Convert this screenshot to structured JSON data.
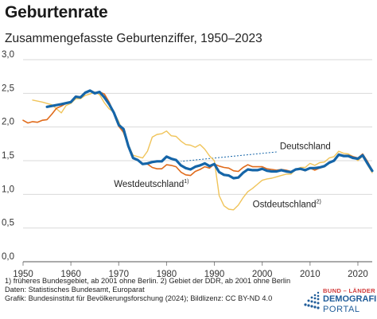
{
  "header": {
    "title": "Geburtenrate",
    "subtitle": "Zusammengefasste Geburtenziffer, 1950–2023"
  },
  "colors": {
    "deutschland": "#1565a8",
    "westdeutschland": "#e06b1b",
    "ostdeutschland": "#f0c45a",
    "grid": "#d9d9d9",
    "connector": "#1565a8"
  },
  "chart_data": {
    "type": "line",
    "title": "Geburtenrate",
    "subtitle": "Zusammengefasste Geburtenziffer, 1950–2023",
    "xlim": [
      1950,
      2023
    ],
    "ylim": [
      0,
      3.0
    ],
    "x_ticks": [
      "1950",
      "1960",
      "1970",
      "1980",
      "1990",
      "2000",
      "2010",
      "2020"
    ],
    "y_ticks": [
      "0,0",
      "0,5",
      "1,0",
      "1,5",
      "2,0",
      "2,5",
      "3,0"
    ],
    "grid": true,
    "series": [
      {
        "name": "Deutschland",
        "points": [
          [
            1955,
            2.3
          ],
          [
            1958,
            2.34
          ],
          [
            1960,
            2.37
          ],
          [
            1961,
            2.45
          ],
          [
            1962,
            2.44
          ],
          [
            1963,
            2.51
          ],
          [
            1964,
            2.54
          ],
          [
            1965,
            2.5
          ],
          [
            1966,
            2.52
          ],
          [
            1967,
            2.44
          ],
          [
            1968,
            2.34
          ],
          [
            1969,
            2.21
          ],
          [
            1970,
            2.03
          ],
          [
            1971,
            1.97
          ],
          [
            1972,
            1.72
          ],
          [
            1973,
            1.54
          ],
          [
            1974,
            1.51
          ],
          [
            1975,
            1.45
          ],
          [
            1976,
            1.46
          ],
          [
            1977,
            1.48
          ],
          [
            1978,
            1.49
          ],
          [
            1979,
            1.49
          ],
          [
            1980,
            1.56
          ],
          [
            1981,
            1.53
          ],
          [
            1982,
            1.51
          ],
          [
            1983,
            1.43
          ],
          [
            1984,
            1.39
          ],
          [
            1985,
            1.37
          ],
          [
            1986,
            1.41
          ],
          [
            1987,
            1.43
          ],
          [
            1988,
            1.46
          ],
          [
            1989,
            1.42
          ],
          [
            1990,
            1.45
          ],
          [
            1991,
            1.33
          ],
          [
            1992,
            1.29
          ],
          [
            1993,
            1.28
          ],
          [
            1994,
            1.24
          ],
          [
            1995,
            1.25
          ],
          [
            1996,
            1.32
          ],
          [
            1997,
            1.37
          ],
          [
            1998,
            1.36
          ],
          [
            1999,
            1.36
          ],
          [
            2000,
            1.38
          ],
          [
            2001,
            1.35
          ],
          [
            2002,
            1.34
          ],
          [
            2003,
            1.34
          ],
          [
            2004,
            1.36
          ],
          [
            2005,
            1.34
          ],
          [
            2006,
            1.33
          ],
          [
            2007,
            1.37
          ],
          [
            2008,
            1.38
          ],
          [
            2009,
            1.36
          ],
          [
            2010,
            1.39
          ],
          [
            2011,
            1.39
          ],
          [
            2012,
            1.4
          ],
          [
            2013,
            1.42
          ],
          [
            2014,
            1.47
          ],
          [
            2015,
            1.5
          ],
          [
            2016,
            1.59
          ],
          [
            2017,
            1.57
          ],
          [
            2018,
            1.57
          ],
          [
            2019,
            1.54
          ],
          [
            2020,
            1.53
          ],
          [
            2021,
            1.58
          ],
          [
            2022,
            1.46
          ],
          [
            2023,
            1.35
          ]
        ]
      },
      {
        "name": "Westdeutschland",
        "points": [
          [
            1950,
            2.1
          ],
          [
            1951,
            2.06
          ],
          [
            1952,
            2.08
          ],
          [
            1953,
            2.07
          ],
          [
            1954,
            2.1
          ],
          [
            1955,
            2.11
          ],
          [
            1956,
            2.19
          ],
          [
            1957,
            2.28
          ],
          [
            1958,
            2.31
          ],
          [
            1959,
            2.35
          ],
          [
            1960,
            2.37
          ],
          [
            1961,
            2.46
          ],
          [
            1962,
            2.44
          ],
          [
            1963,
            2.52
          ],
          [
            1964,
            2.54
          ],
          [
            1965,
            2.5
          ],
          [
            1966,
            2.52
          ],
          [
            1967,
            2.49
          ],
          [
            1968,
            2.37
          ],
          [
            1969,
            2.21
          ],
          [
            1970,
            2.01
          ],
          [
            1971,
            1.92
          ],
          [
            1972,
            1.71
          ],
          [
            1973,
            1.54
          ],
          [
            1974,
            1.51
          ],
          [
            1975,
            1.45
          ],
          [
            1976,
            1.45
          ],
          [
            1977,
            1.4
          ],
          [
            1978,
            1.38
          ],
          [
            1979,
            1.38
          ],
          [
            1980,
            1.44
          ],
          [
            1981,
            1.43
          ],
          [
            1982,
            1.41
          ],
          [
            1983,
            1.33
          ],
          [
            1984,
            1.29
          ],
          [
            1985,
            1.28
          ],
          [
            1986,
            1.34
          ],
          [
            1987,
            1.37
          ],
          [
            1988,
            1.41
          ],
          [
            1989,
            1.39
          ],
          [
            1990,
            1.45
          ],
          [
            1991,
            1.42
          ],
          [
            1992,
            1.4
          ],
          [
            1993,
            1.39
          ],
          [
            1994,
            1.35
          ],
          [
            1995,
            1.34
          ],
          [
            1996,
            1.4
          ],
          [
            1997,
            1.44
          ],
          [
            1998,
            1.41
          ],
          [
            1999,
            1.41
          ],
          [
            2000,
            1.41
          ],
          [
            2001,
            1.38
          ],
          [
            2002,
            1.37
          ],
          [
            2003,
            1.36
          ],
          [
            2004,
            1.37
          ],
          [
            2005,
            1.36
          ],
          [
            2006,
            1.34
          ],
          [
            2007,
            1.37
          ],
          [
            2008,
            1.37
          ],
          [
            2009,
            1.35
          ],
          [
            2010,
            1.39
          ],
          [
            2011,
            1.36
          ],
          [
            2012,
            1.39
          ],
          [
            2013,
            1.41
          ],
          [
            2014,
            1.47
          ],
          [
            2015,
            1.5
          ],
          [
            2016,
            1.6
          ],
          [
            2017,
            1.58
          ],
          [
            2018,
            1.58
          ],
          [
            2019,
            1.56
          ],
          [
            2020,
            1.54
          ],
          [
            2021,
            1.6
          ],
          [
            2022,
            1.49
          ],
          [
            2023,
            1.36
          ]
        ]
      },
      {
        "name": "Ostdeutschland",
        "points": [
          [
            1952,
            2.4
          ],
          [
            1954,
            2.37
          ],
          [
            1956,
            2.33
          ],
          [
            1958,
            2.21
          ],
          [
            1959,
            2.32
          ],
          [
            1960,
            2.35
          ],
          [
            1961,
            2.42
          ],
          [
            1962,
            2.42
          ],
          [
            1963,
            2.47
          ],
          [
            1964,
            2.49
          ],
          [
            1965,
            2.52
          ],
          [
            1966,
            2.48
          ],
          [
            1967,
            2.36
          ],
          [
            1968,
            2.27
          ],
          [
            1969,
            2.22
          ],
          [
            1970,
            2.08
          ],
          [
            1971,
            1.91
          ],
          [
            1972,
            1.74
          ],
          [
            1973,
            1.58
          ],
          [
            1974,
            1.56
          ],
          [
            1975,
            1.54
          ],
          [
            1976,
            1.64
          ],
          [
            1977,
            1.85
          ],
          [
            1978,
            1.89
          ],
          [
            1979,
            1.9
          ],
          [
            1980,
            1.94
          ],
          [
            1981,
            1.87
          ],
          [
            1982,
            1.86
          ],
          [
            1983,
            1.79
          ],
          [
            1984,
            1.74
          ],
          [
            1985,
            1.73
          ],
          [
            1986,
            1.7
          ],
          [
            1987,
            1.74
          ],
          [
            1988,
            1.67
          ],
          [
            1989,
            1.57
          ],
          [
            1990,
            1.5
          ],
          [
            1991,
            0.98
          ],
          [
            1992,
            0.83
          ],
          [
            1993,
            0.78
          ],
          [
            1994,
            0.77
          ],
          [
            1995,
            0.84
          ],
          [
            1996,
            0.95
          ],
          [
            1997,
            1.04
          ],
          [
            1998,
            1.09
          ],
          [
            1999,
            1.15
          ],
          [
            2000,
            1.21
          ],
          [
            2001,
            1.23
          ],
          [
            2002,
            1.24
          ],
          [
            2003,
            1.26
          ],
          [
            2004,
            1.28
          ],
          [
            2005,
            1.3
          ],
          [
            2006,
            1.3
          ],
          [
            2007,
            1.37
          ],
          [
            2008,
            1.4
          ],
          [
            2009,
            1.4
          ],
          [
            2010,
            1.46
          ],
          [
            2011,
            1.43
          ],
          [
            2012,
            1.47
          ],
          [
            2013,
            1.48
          ],
          [
            2014,
            1.54
          ],
          [
            2015,
            1.56
          ],
          [
            2016,
            1.64
          ],
          [
            2017,
            1.61
          ],
          [
            2018,
            1.6
          ],
          [
            2019,
            1.56
          ],
          [
            2020,
            1.5
          ],
          [
            2021,
            1.57
          ],
          [
            2022,
            1.44
          ],
          [
            2023,
            1.32
          ]
        ]
      }
    ],
    "annotations": {
      "deutschland": "Deutschland",
      "westdeutschland": "Westdeutschland",
      "westdeutschland_sup": "1)",
      "ostdeutschland": "Ostdeutschland",
      "ostdeutschland_sup": "2)"
    }
  },
  "footer": {
    "note1": "1) früheres Bundesgebiet, ab 2001 ohne Berlin. 2) Gebiet der DDR, ab 2001 ohne Berlin",
    "note2": "Daten: Statistisches Bundesamt, Europarat",
    "note3": "Grafik: Bundesinstitut für Bevölkerungsforschung (2024); Bildlizenz: CC BY-ND 4.0"
  },
  "logo": {
    "line1": "BUND – LÄNDER",
    "line2": "DEMOGRAFIE",
    "line3": "PORTAL"
  }
}
